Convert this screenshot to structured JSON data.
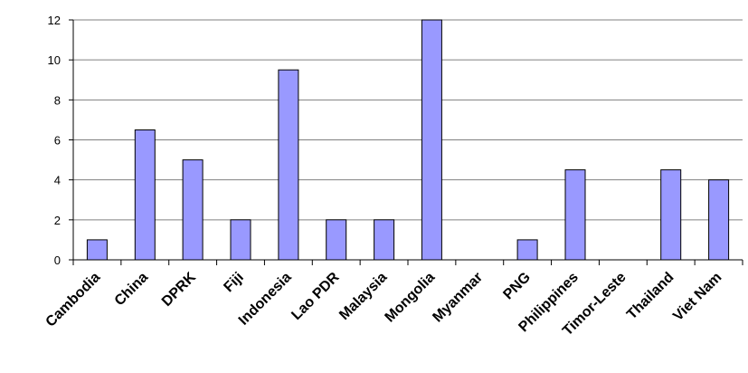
{
  "chart_data": {
    "type": "bar",
    "categories": [
      "Cambodia",
      "China",
      "DPRK",
      "Fiji",
      "Indonesia",
      "Lao PDR",
      "Malaysia",
      "Mongolia",
      "Myanmar",
      "PNG",
      "Philippines",
      "Timor-Leste",
      "Thailand",
      "Viet Nam"
    ],
    "values": [
      1,
      6.5,
      5,
      2,
      9.5,
      2,
      2,
      12,
      0,
      1,
      4.5,
      0,
      4.5,
      4
    ],
    "title": "",
    "xlabel": "",
    "ylabel": "",
    "ylim": [
      0,
      12
    ],
    "yticks": [
      0,
      2,
      4,
      6,
      8,
      10,
      12
    ],
    "grid": true,
    "legend": "none",
    "colors": {
      "bar_fill": "#9999ff",
      "bar_stroke": "#000000",
      "grid": "#808080",
      "axis": "#000000"
    }
  }
}
